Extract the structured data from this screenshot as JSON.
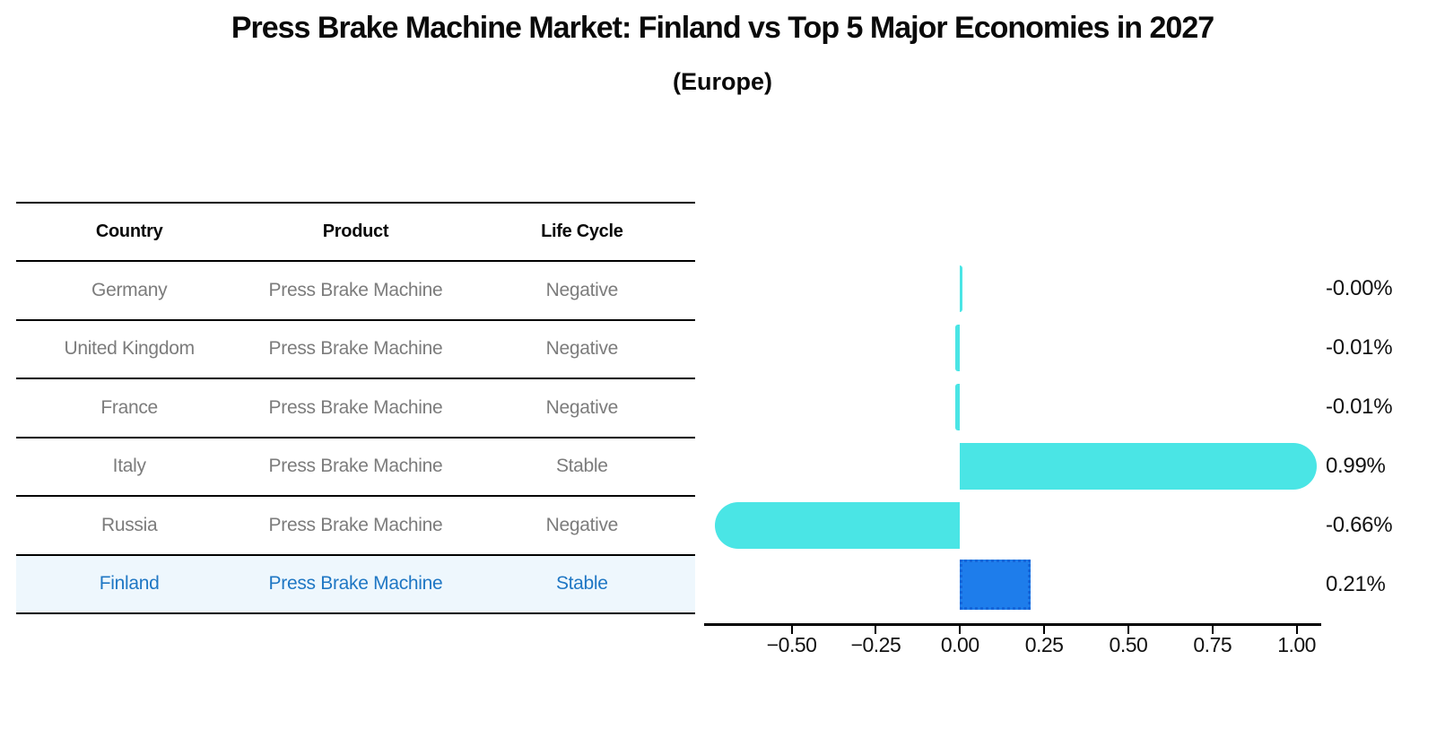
{
  "title": "Press Brake Machine Market: Finland vs Top 5 Major Economies in 2027",
  "subtitle": "(Europe)",
  "table": {
    "headers": [
      "Country",
      "Product",
      "Life Cycle"
    ],
    "rows": [
      {
        "country": "Germany",
        "product": "Press Brake Machine",
        "life_cycle": "Negative",
        "highlight": false
      },
      {
        "country": "United Kingdom",
        "product": "Press Brake Machine",
        "life_cycle": "Negative",
        "highlight": false
      },
      {
        "country": "France",
        "product": "Press Brake Machine",
        "life_cycle": "Negative",
        "highlight": false
      },
      {
        "country": "Italy",
        "product": "Press Brake Machine",
        "life_cycle": "Stable",
        "highlight": false
      },
      {
        "country": "Russia",
        "product": "Press Brake Machine",
        "life_cycle": "Negative",
        "highlight": false
      },
      {
        "country": "Finland",
        "product": "Press Brake Machine",
        "life_cycle": "Stable",
        "highlight": true
      }
    ]
  },
  "chart_data": {
    "type": "bar",
    "orientation": "horizontal",
    "title": "Press Brake Machine Market: Finland vs Top 5 Major Economies in 2027 (Europe)",
    "categories": [
      "Germany",
      "United Kingdom",
      "France",
      "Italy",
      "Russia",
      "Finland"
    ],
    "values": [
      -0.0,
      -0.01,
      -0.01,
      0.99,
      -0.66,
      0.21
    ],
    "value_labels": [
      "-0.00%",
      "-0.01%",
      "-0.01%",
      "0.99%",
      "-0.66%",
      "0.21%"
    ],
    "highlight_index": 5,
    "x_ticks": [
      -0.5,
      -0.25,
      0.0,
      0.25,
      0.5,
      0.75,
      1.0
    ],
    "x_tick_labels": [
      "−0.50",
      "−0.25",
      "0.00",
      "0.25",
      "0.50",
      "0.75",
      "1.00"
    ],
    "xlim": [
      -0.76,
      1.065
    ],
    "grid": false,
    "legend": null,
    "unit": "percent"
  },
  "colors": {
    "bar": "#4AE5E5",
    "highlight_bar": "#1E7DEB",
    "highlight_bar_border": "#1464D8",
    "link_text": "#1f77c4",
    "row_highlight_bg": "#eef7fd",
    "table_text": "#7c7c7c",
    "axis": "#000000",
    "title_text": "#0a0a0a"
  }
}
